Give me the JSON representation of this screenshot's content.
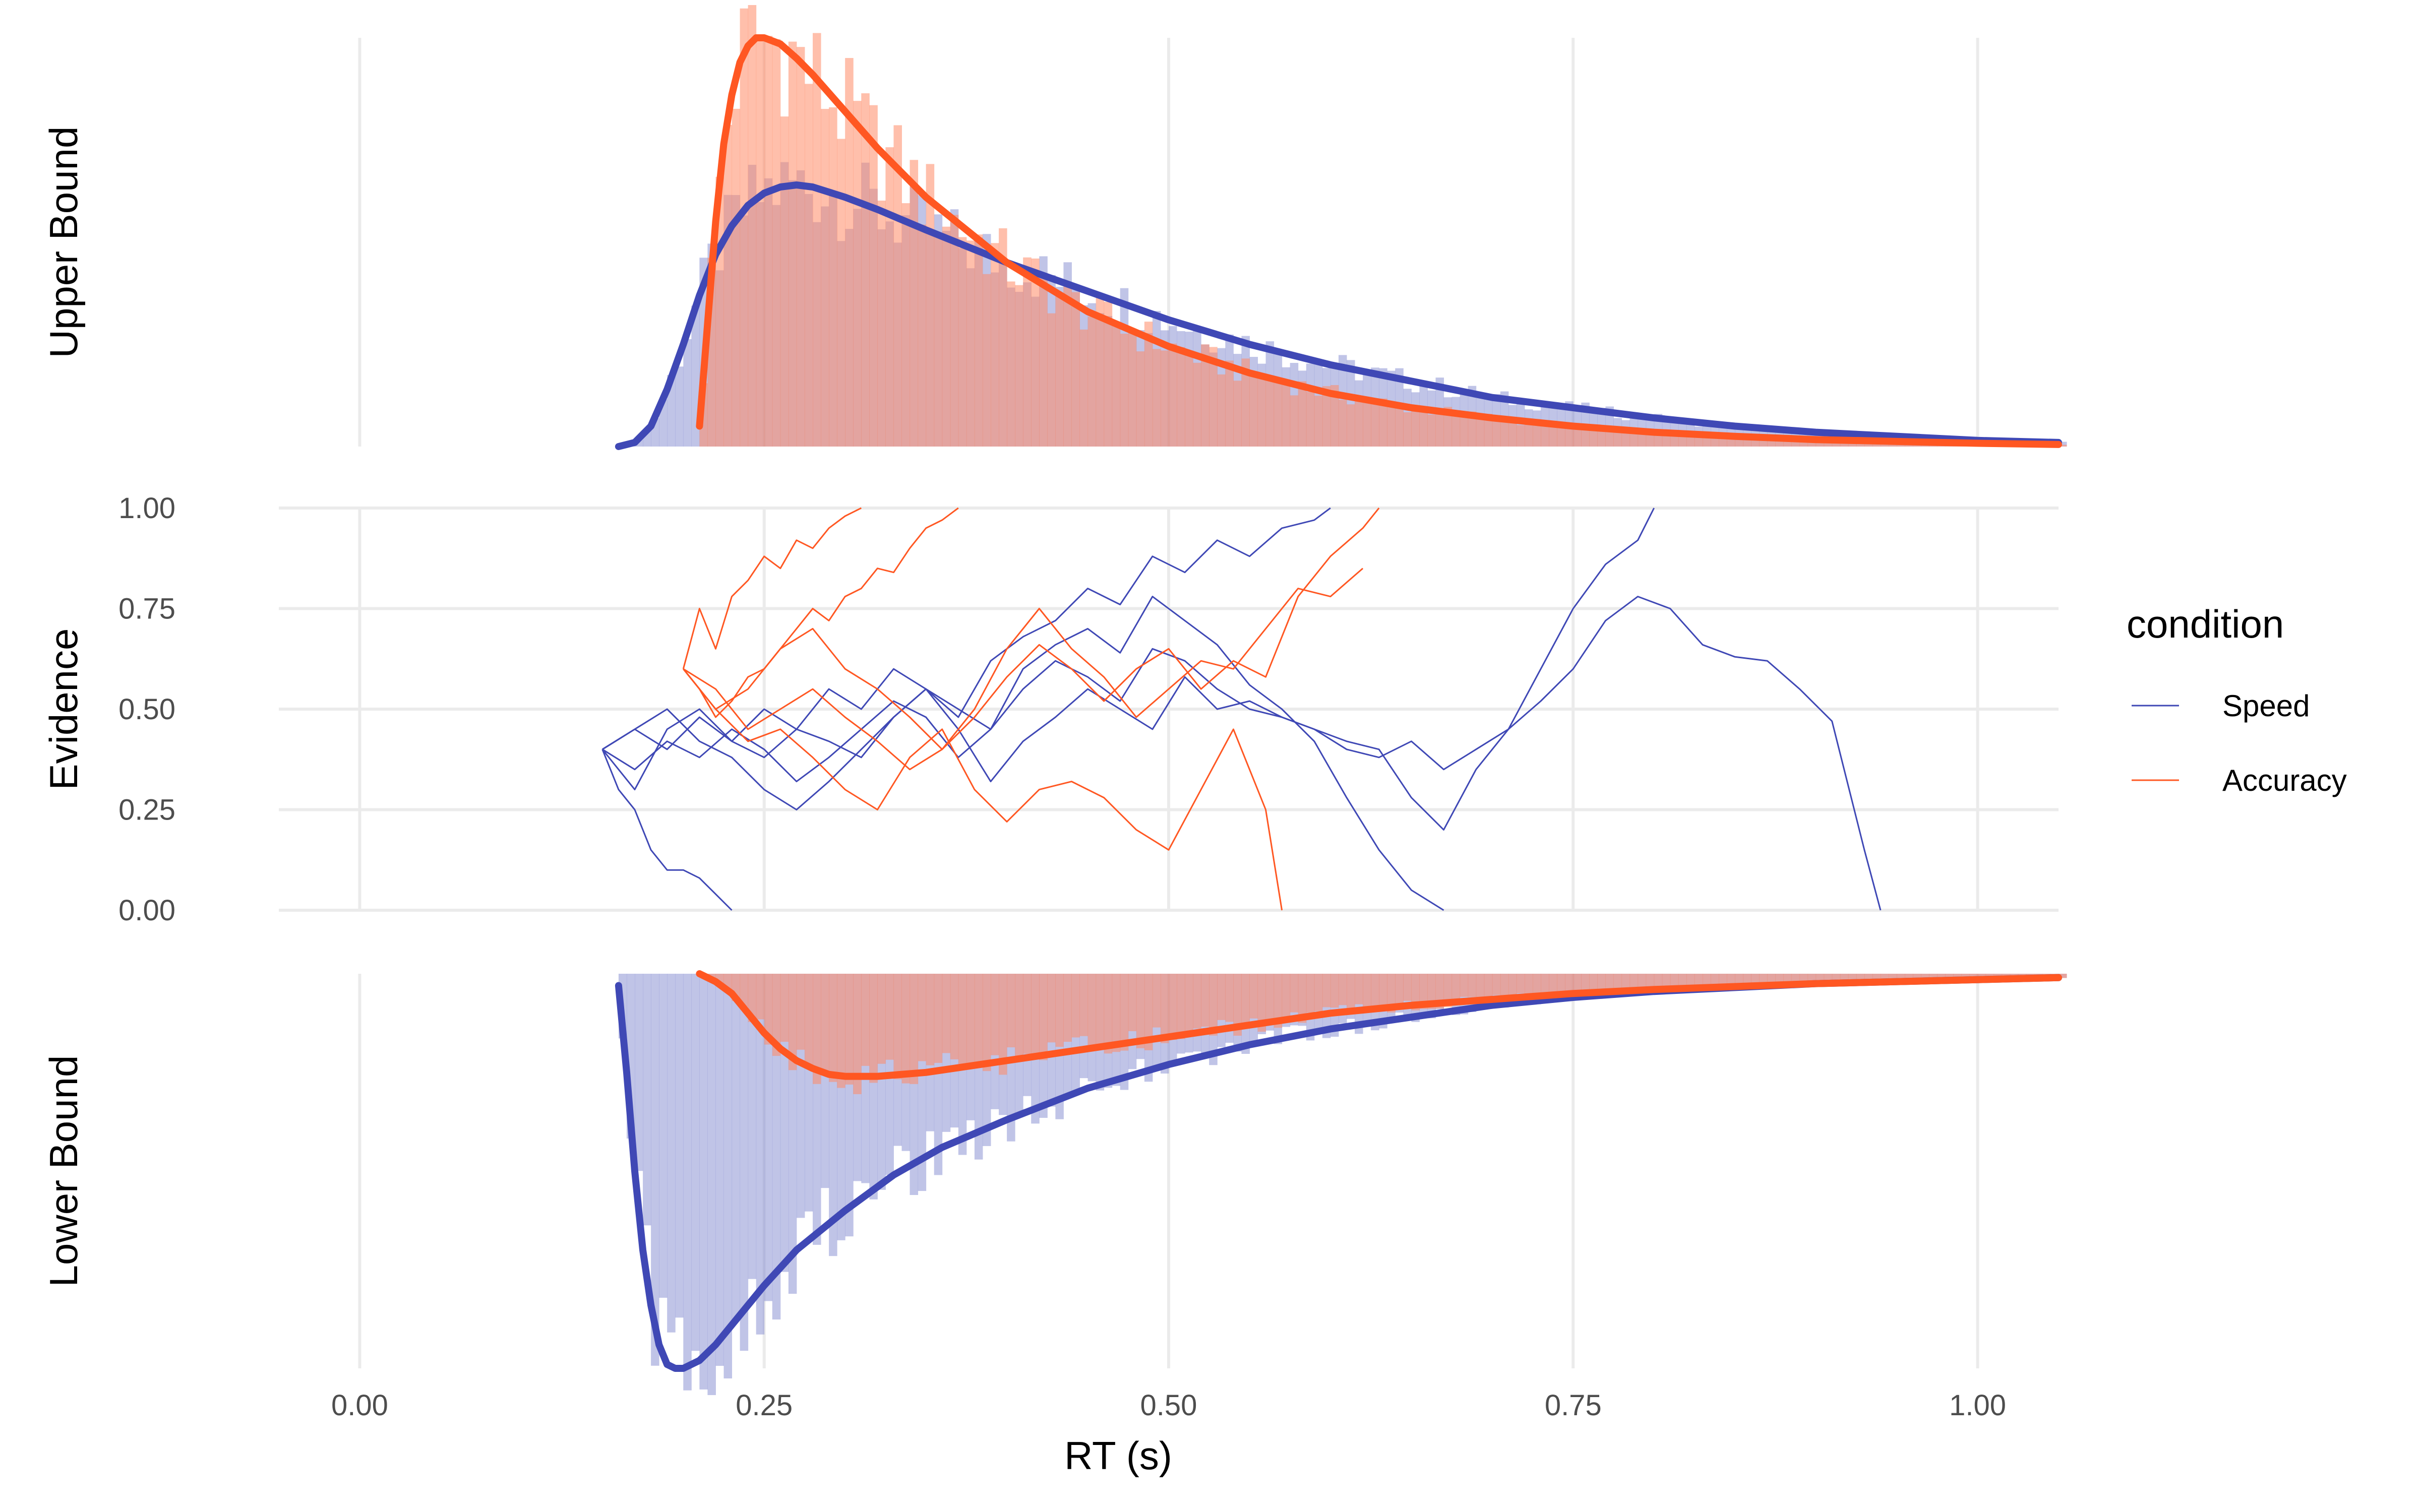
{
  "chart_data": {
    "type": "line",
    "xlabel": "RT (s)",
    "x_ticks": [
      "0.00",
      "0.25",
      "0.50",
      "0.75",
      "1.00"
    ],
    "x_tick_values": [
      0,
      0.25,
      0.5,
      0.75,
      1.0
    ],
    "xlim": [
      -0.05,
      1.05
    ],
    "legend": {
      "title": "condition",
      "placement": "right",
      "entries": [
        {
          "label": "Speed",
          "color": "#3F48B5"
        },
        {
          "label": "Accuracy",
          "color": "#FF5722"
        }
      ]
    },
    "colors": {
      "speed": "#3F48B5",
      "accuracy": "#FF5722",
      "speed_hist": "#8C93D4",
      "accuracy_hist": "#FF8B66"
    },
    "panels": [
      {
        "label": "Upper Bound",
        "kind": "density_hist",
        "series": [
          {
            "name": "Speed",
            "curve": {
              "x": [
                0.16,
                0.17,
                0.18,
                0.19,
                0.2,
                0.21,
                0.22,
                0.23,
                0.24,
                0.25,
                0.26,
                0.27,
                0.28,
                0.3,
                0.32,
                0.35,
                0.4,
                0.45,
                0.5,
                0.55,
                0.6,
                0.65,
                0.7,
                0.75,
                0.8,
                0.85,
                0.9,
                1.0,
                1.05
              ],
              "y": [
                0,
                0.01,
                0.05,
                0.14,
                0.25,
                0.37,
                0.47,
                0.54,
                0.59,
                0.62,
                0.635,
                0.64,
                0.635,
                0.61,
                0.58,
                0.53,
                0.45,
                0.38,
                0.31,
                0.25,
                0.2,
                0.16,
                0.12,
                0.095,
                0.07,
                0.05,
                0.035,
                0.015,
                0.01
              ]
            }
          },
          {
            "name": "Accuracy",
            "curve": {
              "x": [
                0.21,
                0.215,
                0.22,
                0.225,
                0.23,
                0.235,
                0.24,
                0.245,
                0.25,
                0.26,
                0.27,
                0.28,
                0.3,
                0.32,
                0.35,
                0.4,
                0.45,
                0.5,
                0.55,
                0.6,
                0.65,
                0.7,
                0.75,
                0.8,
                0.85,
                0.9,
                1.0,
                1.05
              ],
              "y": [
                0.05,
                0.3,
                0.55,
                0.74,
                0.86,
                0.94,
                0.98,
                1.0,
                1.0,
                0.985,
                0.95,
                0.91,
                0.82,
                0.73,
                0.61,
                0.45,
                0.33,
                0.245,
                0.18,
                0.13,
                0.095,
                0.07,
                0.05,
                0.035,
                0.025,
                0.017,
                0.008,
                0.005
              ]
            }
          }
        ]
      },
      {
        "label": "Evidence",
        "kind": "paths",
        "ylim": [
          0,
          1
        ],
        "y_ticks": [
          "0.00",
          "0.25",
          "0.50",
          "0.75",
          "1.00"
        ],
        "y_tick_values": [
          0,
          0.25,
          0.5,
          0.75,
          1.0
        ],
        "series": [
          {
            "name": "Speed",
            "paths": [
              {
                "x": [
                  0.15,
                  0.16,
                  0.17,
                  0.18,
                  0.19,
                  0.2,
                  0.21,
                  0.22,
                  0.23
                ],
                "y": [
                  0.4,
                  0.3,
                  0.25,
                  0.15,
                  0.1,
                  0.1,
                  0.08,
                  0.04,
                  0.0
                ]
              },
              {
                "x": [
                  0.15,
                  0.17,
                  0.19,
                  0.21,
                  0.23,
                  0.25,
                  0.27,
                  0.29,
                  0.31,
                  0.33,
                  0.35,
                  0.37,
                  0.39,
                  0.41,
                  0.43,
                  0.45,
                  0.47,
                  0.49,
                  0.51,
                  0.53,
                  0.55,
                  0.57,
                  0.59,
                  0.6
                ],
                "y": [
                  0.4,
                  0.45,
                  0.4,
                  0.48,
                  0.42,
                  0.5,
                  0.45,
                  0.55,
                  0.5,
                  0.6,
                  0.55,
                  0.48,
                  0.62,
                  0.68,
                  0.72,
                  0.8,
                  0.76,
                  0.88,
                  0.84,
                  0.92,
                  0.88,
                  0.95,
                  0.97,
                  1.0
                ]
              },
              {
                "x": [
                  0.15,
                  0.17,
                  0.19,
                  0.21,
                  0.23,
                  0.25,
                  0.27,
                  0.29,
                  0.31,
                  0.33,
                  0.35,
                  0.37,
                  0.39,
                  0.41,
                  0.43,
                  0.45,
                  0.47,
                  0.49,
                  0.51,
                  0.53,
                  0.55,
                  0.57,
                  0.59,
                  0.61,
                  0.63,
                  0.65,
                  0.67,
                  0.69,
                  0.71,
                  0.73,
                  0.75,
                  0.77,
                  0.79,
                  0.81,
                  0.83,
                  0.85,
                  0.87,
                  0.89,
                  0.91,
                  0.93,
                  0.94
                ],
                "y": [
                  0.4,
                  0.35,
                  0.42,
                  0.38,
                  0.45,
                  0.4,
                  0.32,
                  0.38,
                  0.45,
                  0.52,
                  0.48,
                  0.38,
                  0.45,
                  0.55,
                  0.62,
                  0.58,
                  0.52,
                  0.65,
                  0.62,
                  0.55,
                  0.5,
                  0.48,
                  0.45,
                  0.4,
                  0.38,
                  0.42,
                  0.35,
                  0.4,
                  0.45,
                  0.52,
                  0.6,
                  0.72,
                  0.78,
                  0.75,
                  0.66,
                  0.63,
                  0.62,
                  0.55,
                  0.47,
                  0.15,
                  0.0
                ]
              },
              {
                "x": [
                  0.15,
                  0.17,
                  0.19,
                  0.21,
                  0.23,
                  0.25,
                  0.27,
                  0.29,
                  0.31,
                  0.33,
                  0.35,
                  0.37,
                  0.39,
                  0.41,
                  0.43,
                  0.45,
                  0.47,
                  0.49,
                  0.51,
                  0.53,
                  0.55,
                  0.57,
                  0.59,
                  0.61,
                  0.63,
                  0.65,
                  0.67
                ],
                "y": [
                  0.4,
                  0.45,
                  0.5,
                  0.42,
                  0.38,
                  0.3,
                  0.25,
                  0.32,
                  0.4,
                  0.48,
                  0.55,
                  0.5,
                  0.45,
                  0.6,
                  0.66,
                  0.7,
                  0.64,
                  0.78,
                  0.72,
                  0.66,
                  0.56,
                  0.5,
                  0.42,
                  0.28,
                  0.15,
                  0.05,
                  0.0
                ]
              },
              {
                "x": [
                  0.15,
                  0.17,
                  0.19,
                  0.21,
                  0.23,
                  0.25,
                  0.27,
                  0.29,
                  0.31,
                  0.33,
                  0.35,
                  0.37,
                  0.39,
                  0.41,
                  0.43,
                  0.45,
                  0.47,
                  0.49,
                  0.51,
                  0.53,
                  0.55,
                  0.57,
                  0.59,
                  0.61,
                  0.63,
                  0.65,
                  0.67,
                  0.69,
                  0.71,
                  0.73,
                  0.75,
                  0.77,
                  0.79,
                  0.8
                ],
                "y": [
                  0.4,
                  0.3,
                  0.45,
                  0.5,
                  0.42,
                  0.38,
                  0.45,
                  0.42,
                  0.38,
                  0.48,
                  0.55,
                  0.45,
                  0.32,
                  0.42,
                  0.48,
                  0.55,
                  0.5,
                  0.45,
                  0.58,
                  0.5,
                  0.52,
                  0.48,
                  0.45,
                  0.42,
                  0.4,
                  0.28,
                  0.2,
                  0.35,
                  0.45,
                  0.6,
                  0.75,
                  0.86,
                  0.92,
                  1.0
                ]
              }
            ]
          },
          {
            "name": "Accuracy",
            "paths": [
              {
                "x": [
                  0.2,
                  0.21,
                  0.22,
                  0.23,
                  0.24,
                  0.25,
                  0.26,
                  0.27,
                  0.28,
                  0.29,
                  0.3,
                  0.31
                ],
                "y": [
                  0.6,
                  0.75,
                  0.65,
                  0.78,
                  0.82,
                  0.88,
                  0.85,
                  0.92,
                  0.9,
                  0.95,
                  0.98,
                  1.0
                ]
              },
              {
                "x": [
                  0.2,
                  0.21,
                  0.22,
                  0.23,
                  0.24,
                  0.25,
                  0.26,
                  0.27,
                  0.28,
                  0.29,
                  0.3,
                  0.31,
                  0.32,
                  0.33,
                  0.34,
                  0.35,
                  0.36,
                  0.37
                ],
                "y": [
                  0.6,
                  0.55,
                  0.48,
                  0.52,
                  0.58,
                  0.6,
                  0.65,
                  0.7,
                  0.75,
                  0.72,
                  0.78,
                  0.8,
                  0.85,
                  0.84,
                  0.9,
                  0.95,
                  0.97,
                  1.0
                ]
              },
              {
                "x": [
                  0.2,
                  0.22,
                  0.24,
                  0.26,
                  0.28,
                  0.3,
                  0.32,
                  0.34,
                  0.36,
                  0.38,
                  0.4,
                  0.42,
                  0.44,
                  0.46,
                  0.48,
                  0.5,
                  0.52,
                  0.54,
                  0.56,
                  0.58,
                  0.6,
                  0.62,
                  0.63
                ],
                "y": [
                  0.6,
                  0.55,
                  0.45,
                  0.5,
                  0.55,
                  0.48,
                  0.42,
                  0.35,
                  0.4,
                  0.48,
                  0.58,
                  0.66,
                  0.6,
                  0.52,
                  0.6,
                  0.65,
                  0.55,
                  0.62,
                  0.58,
                  0.78,
                  0.88,
                  0.95,
                  1.0
                ]
              },
              {
                "x": [
                  0.2,
                  0.22,
                  0.24,
                  0.26,
                  0.28,
                  0.3,
                  0.32,
                  0.34,
                  0.36,
                  0.38,
                  0.4,
                  0.42,
                  0.44,
                  0.46,
                  0.48,
                  0.5,
                  0.52,
                  0.54,
                  0.56,
                  0.57
                ],
                "y": [
                  0.6,
                  0.5,
                  0.42,
                  0.45,
                  0.38,
                  0.3,
                  0.25,
                  0.38,
                  0.45,
                  0.3,
                  0.22,
                  0.3,
                  0.32,
                  0.28,
                  0.2,
                  0.15,
                  0.3,
                  0.45,
                  0.25,
                  0.0
                ]
              },
              {
                "x": [
                  0.2,
                  0.22,
                  0.24,
                  0.26,
                  0.28,
                  0.3,
                  0.32,
                  0.34,
                  0.36,
                  0.38,
                  0.4,
                  0.42,
                  0.44,
                  0.46,
                  0.48,
                  0.5,
                  0.52,
                  0.54,
                  0.56,
                  0.58,
                  0.6,
                  0.62
                ],
                "y": [
                  0.6,
                  0.5,
                  0.55,
                  0.65,
                  0.7,
                  0.6,
                  0.55,
                  0.48,
                  0.4,
                  0.5,
                  0.65,
                  0.75,
                  0.65,
                  0.58,
                  0.48,
                  0.55,
                  0.62,
                  0.6,
                  0.7,
                  0.8,
                  0.78,
                  0.85
                ]
              }
            ]
          }
        ]
      },
      {
        "label": "Lower Bound",
        "kind": "density_hist",
        "inverted": true,
        "series": [
          {
            "name": "Speed",
            "curve": {
              "x": [
                0.16,
                0.165,
                0.17,
                0.175,
                0.18,
                0.185,
                0.19,
                0.195,
                0.2,
                0.21,
                0.22,
                0.23,
                0.24,
                0.25,
                0.27,
                0.3,
                0.33,
                0.36,
                0.4,
                0.45,
                0.5,
                0.55,
                0.6,
                0.65,
                0.7,
                0.75,
                0.8,
                0.9,
                1.0,
                1.05
              ],
              "y": [
                0.03,
                0.25,
                0.5,
                0.7,
                0.84,
                0.94,
                0.99,
                1.0,
                1.0,
                0.98,
                0.94,
                0.89,
                0.84,
                0.79,
                0.7,
                0.6,
                0.51,
                0.44,
                0.37,
                0.29,
                0.23,
                0.18,
                0.14,
                0.11,
                0.08,
                0.06,
                0.045,
                0.025,
                0.015,
                0.01
              ]
            }
          },
          {
            "name": "Accuracy",
            "curve": {
              "x": [
                0.21,
                0.22,
                0.23,
                0.24,
                0.25,
                0.26,
                0.27,
                0.28,
                0.29,
                0.3,
                0.32,
                0.35,
                0.4,
                0.45,
                0.5,
                0.55,
                0.6,
                0.65,
                0.7,
                0.75,
                0.8,
                0.9,
                1.0,
                1.05
              ],
              "y": [
                0.0,
                0.02,
                0.05,
                0.1,
                0.15,
                0.19,
                0.22,
                0.24,
                0.255,
                0.26,
                0.26,
                0.25,
                0.22,
                0.19,
                0.16,
                0.13,
                0.1,
                0.08,
                0.065,
                0.05,
                0.04,
                0.025,
                0.015,
                0.01
              ]
            }
          }
        ]
      }
    ]
  }
}
